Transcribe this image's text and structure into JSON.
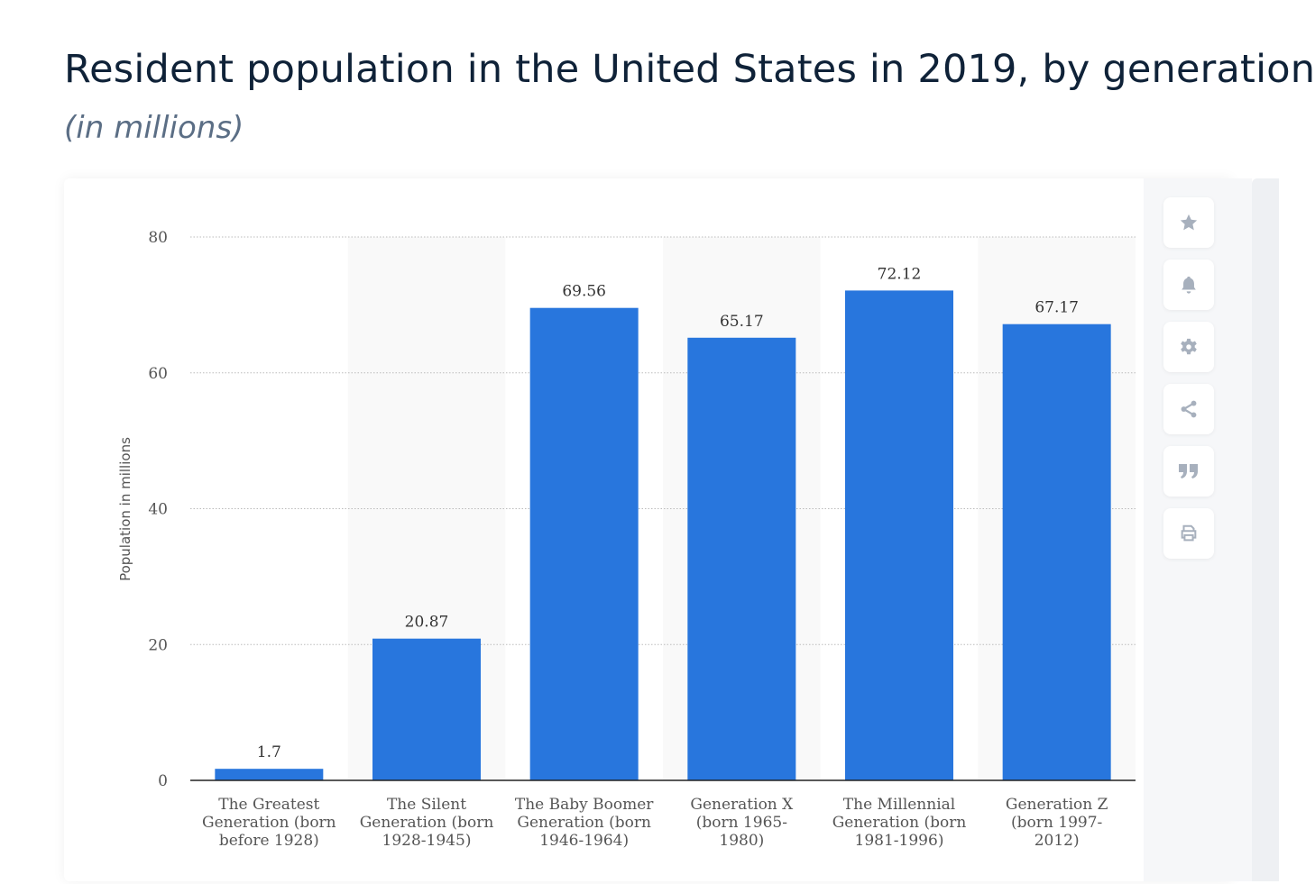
{
  "header": {
    "title": "Resident population in the United States in 2019, by generation",
    "subtitle": "(in millions)"
  },
  "toolbar": {
    "icons": [
      "star-icon",
      "bell-icon",
      "gear-icon",
      "share-icon",
      "quote-icon",
      "print-icon"
    ]
  },
  "chart_data": {
    "type": "bar",
    "title": "Resident population in the United States in 2019, by generation",
    "subtitle": "(in millions)",
    "xlabel": "",
    "ylabel": "Population in millions",
    "ylim": [
      0,
      80
    ],
    "yticks": [
      "0",
      "20",
      "40",
      "60",
      "80"
    ],
    "grid": true,
    "categories": [
      [
        "The Greatest",
        "Generation (born",
        "before 1928)"
      ],
      [
        "The Silent",
        "Generation (born",
        "1928-1945)"
      ],
      [
        "The Baby Boomer",
        "Generation (born",
        "1946-1964)"
      ],
      [
        "Generation X",
        "(born 1965-",
        "1980)"
      ],
      [
        "The Millennial",
        "Generation (born",
        "1981-1996)"
      ],
      [
        "Generation Z",
        "(born 1997-",
        "2012)"
      ]
    ],
    "values": [
      1.7,
      20.87,
      69.56,
      65.17,
      72.12,
      67.17
    ],
    "data_labels": [
      "1.7",
      "20.87",
      "69.56",
      "65.17",
      "72.12",
      "67.17"
    ],
    "bar_color": "#2876dd"
  }
}
